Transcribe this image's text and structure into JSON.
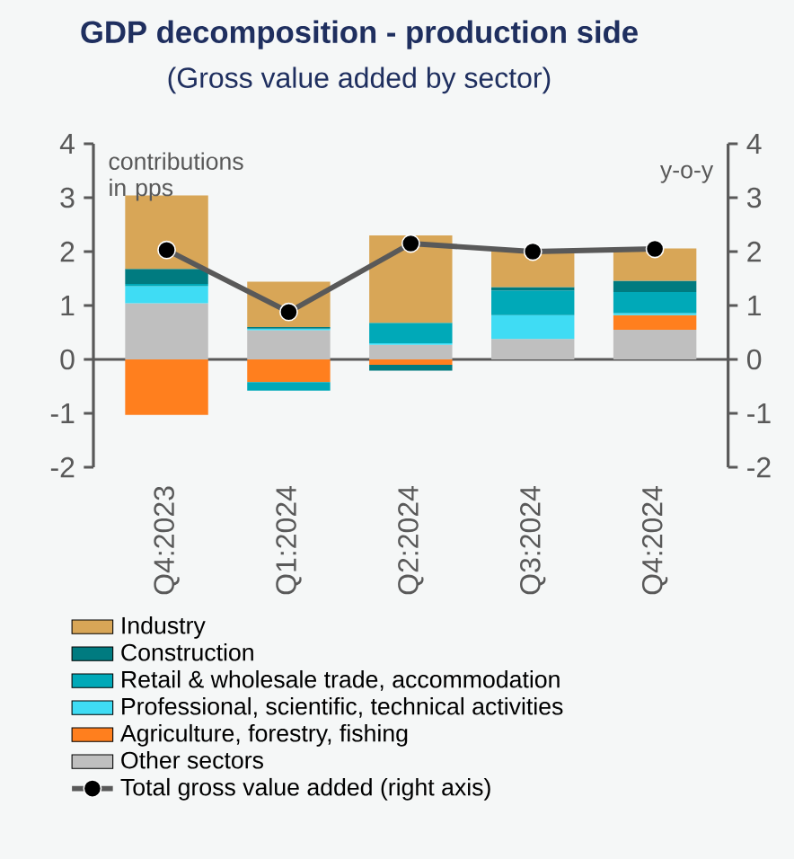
{
  "chart_data": {
    "type": "bar",
    "stacked": true,
    "title": "GDP decomposition - production side",
    "subtitle": "(Gross value added by sector)",
    "ylabel": "contributions in pps",
    "y2label": "y-o-y",
    "categories": [
      "Q4:2023",
      "Q1:2024",
      "Q2:2024",
      "Q3:2024",
      "Q4:2024"
    ],
    "series": [
      {
        "name": "Other sectors",
        "color": "#bfbfbf",
        "values": [
          1.04,
          0.54,
          0.27,
          0.38,
          0.55
        ]
      },
      {
        "name": "Agriculture, forestry, fishing",
        "color": "#ff7f1e",
        "values": [
          -1.03,
          -0.42,
          -0.1,
          0,
          0.27
        ]
      },
      {
        "name": "Professional, scientific, technical activities",
        "color": "#3fdcf4",
        "values": [
          0.32,
          0.03,
          0.03,
          0.44,
          0.04
        ]
      },
      {
        "name": "Retail & wholesale trade, accommodation",
        "color": "#00a9b8",
        "values": [
          0.04,
          -0.16,
          0.38,
          0.46,
          0.39
        ]
      },
      {
        "name": "Construction",
        "color": "#007b80",
        "values": [
          0.28,
          0.03,
          -0.11,
          0.06,
          0.21
        ]
      },
      {
        "name": "Industry",
        "color": "#d8a657",
        "values": [
          1.36,
          0.84,
          1.62,
          0.68,
          0.6
        ]
      },
      {
        "name": "Total gross value added (right axis)",
        "type": "line",
        "axis": "y2",
        "color": "#595959",
        "marker": "circle",
        "line_style": "solid",
        "values": [
          2.03,
          0.88,
          2.15,
          2.0,
          2.05
        ]
      }
    ],
    "ylim": [
      -2,
      4
    ],
    "yticks": [
      -2,
      -1,
      0,
      1,
      2,
      3,
      4
    ],
    "y2lim": [
      -2,
      4
    ],
    "y2ticks": [
      -2,
      -1,
      0,
      1,
      2,
      3,
      4
    ],
    "legend": "bottom"
  }
}
